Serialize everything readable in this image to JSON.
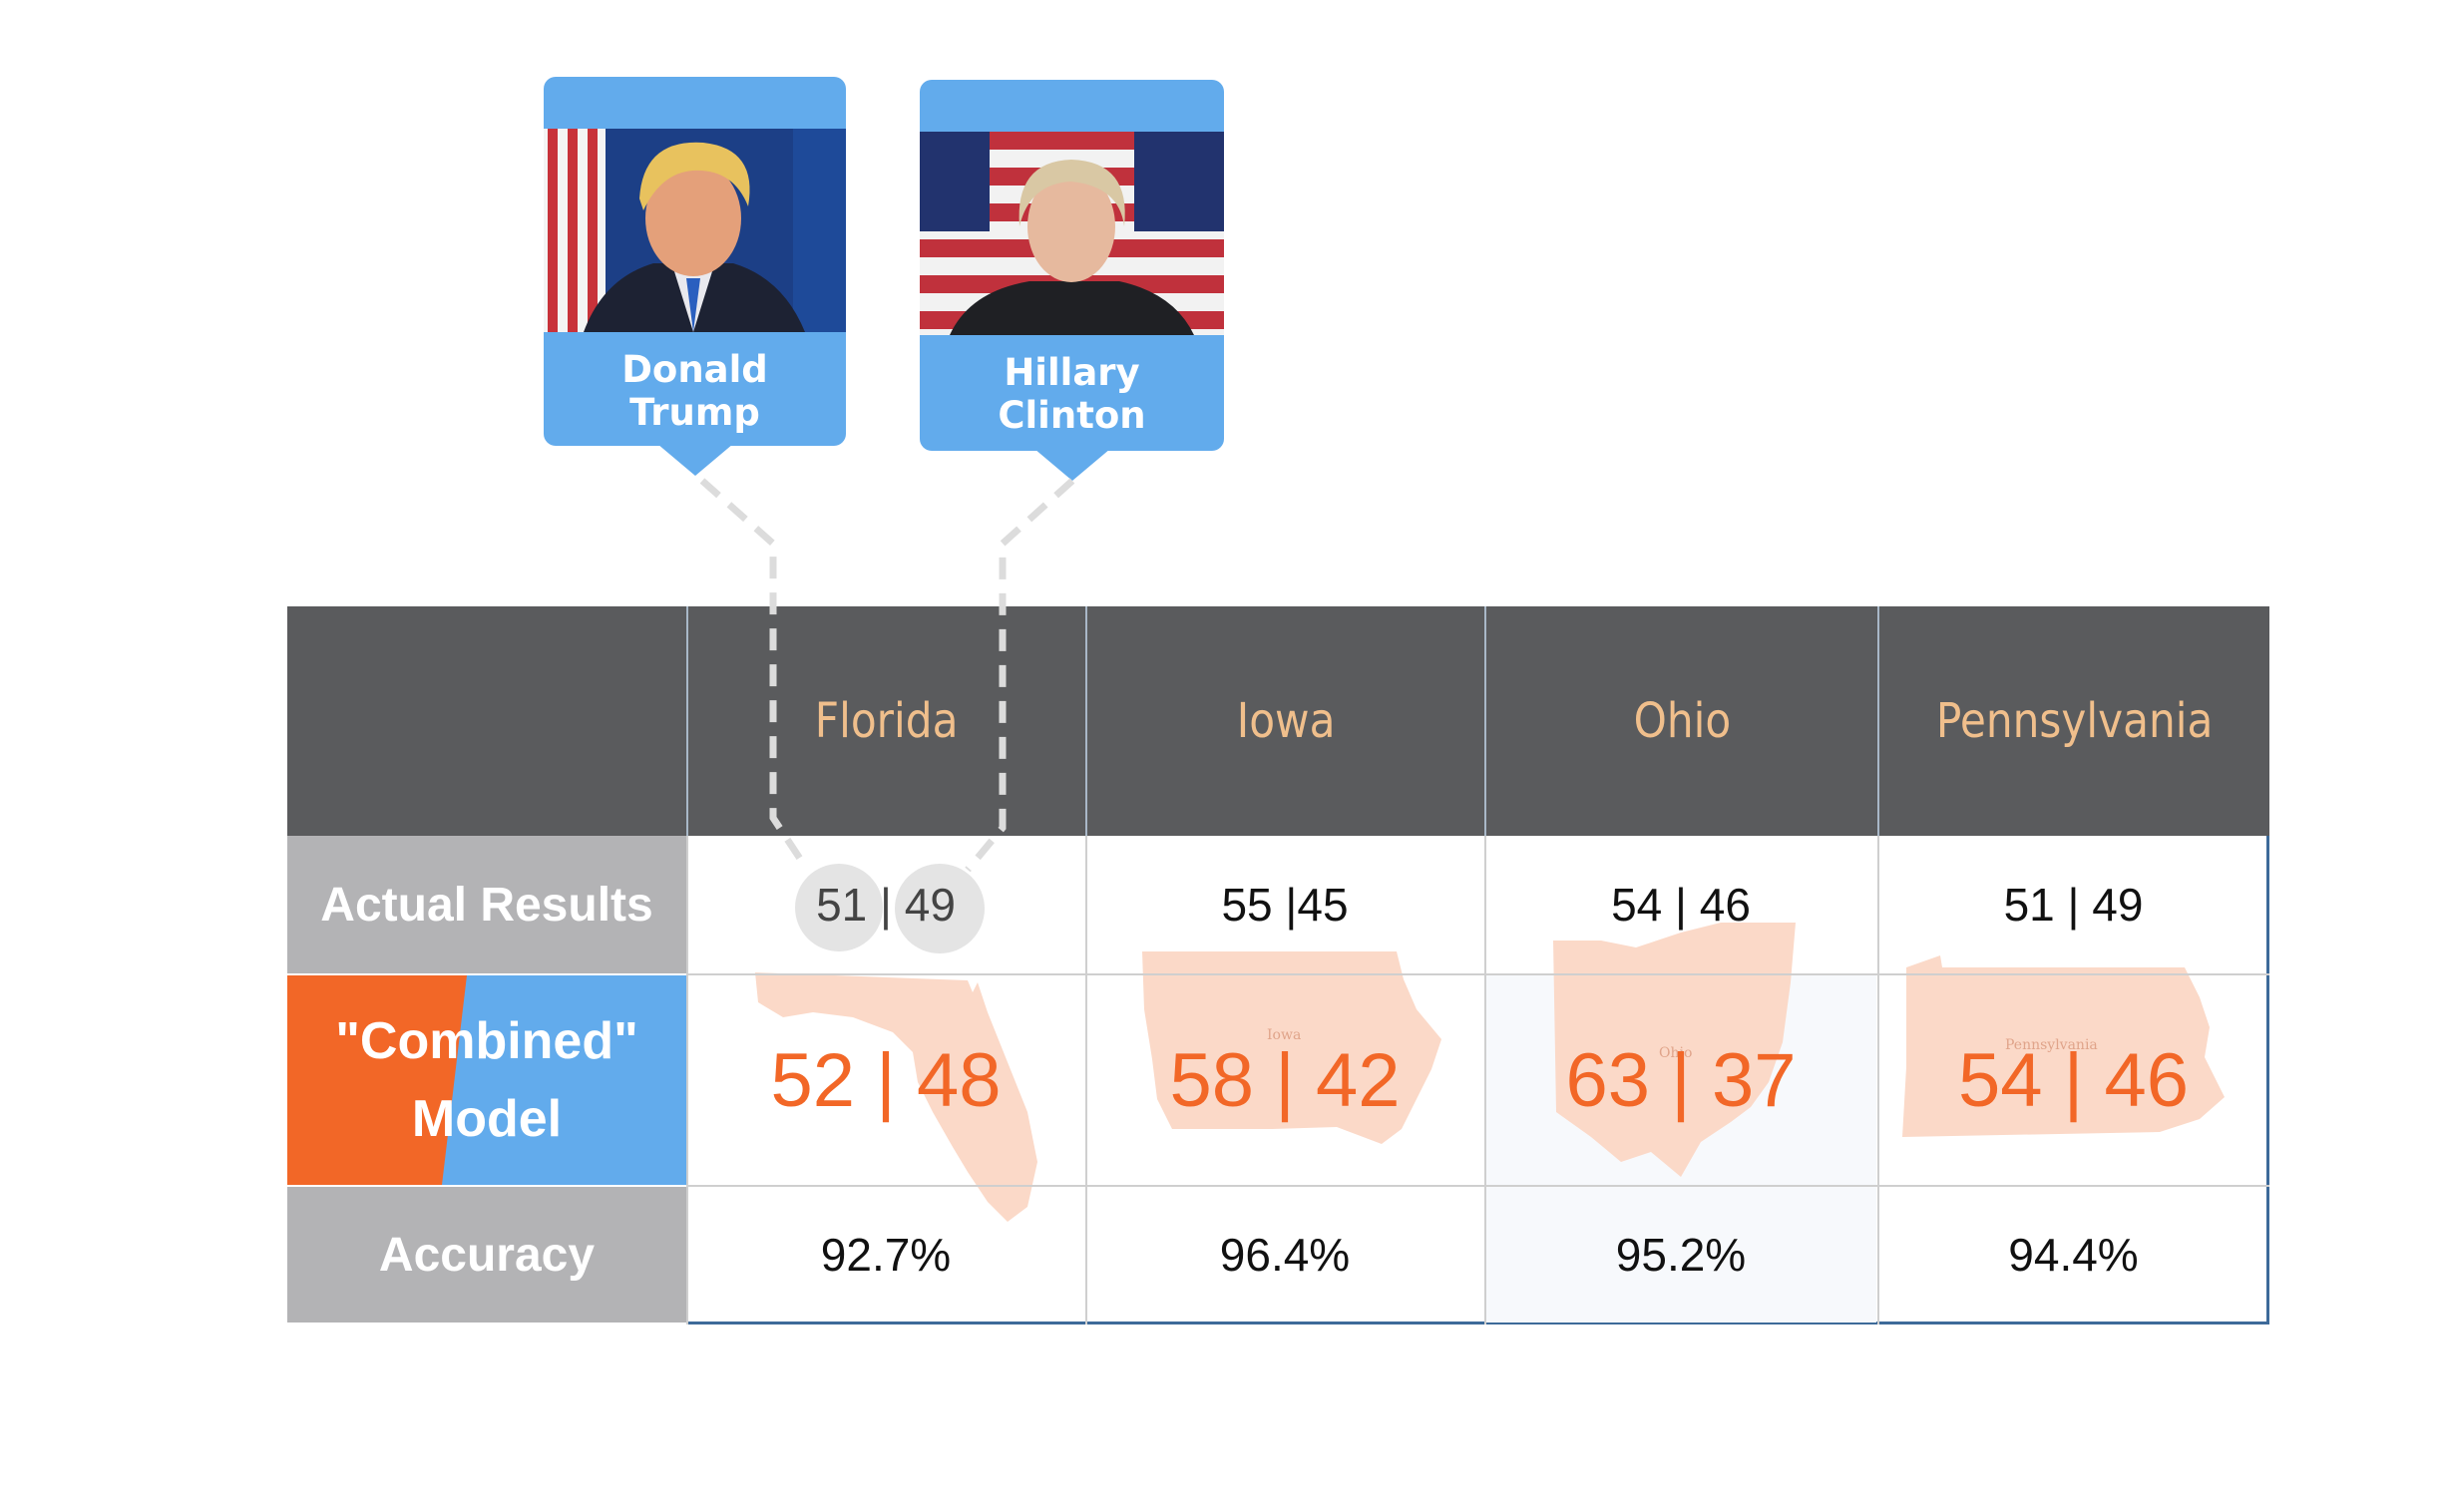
{
  "candidates": [
    {
      "first": "Donald",
      "last": "Trump"
    },
    {
      "first": "Hillary",
      "last": "Clinton"
    }
  ],
  "table": {
    "states": [
      "Florida",
      "Iowa",
      "Ohio",
      "Pennsylvania"
    ],
    "row_labels": {
      "actual": "Actual Results",
      "model_line1": "\"Combined\"",
      "model_line2": "Model",
      "accuracy": "Accuracy"
    },
    "actual": [
      "51 | 49",
      "55 |45",
      "54 | 46",
      "51 | 49"
    ],
    "model": [
      "52 | 48",
      "58 | 42",
      "63 | 37",
      "54 | 46"
    ],
    "accuracy": [
      "92.7%",
      "96.4%",
      "95.2%",
      "94.4%"
    ],
    "map_labels": [
      "Iowa",
      "Ohio",
      "Pennsylvania"
    ]
  },
  "colors": {
    "header_bg": "#5a5b5d",
    "header_text": "#f0bf8c",
    "label_bg": "#b3b3b5",
    "model_orange": "#f26727",
    "model_blue": "#62abec",
    "card_blue": "#62abec",
    "map_fill": "#fbd9c8",
    "grid_line": "#cfcfcf",
    "border_blue": "#3d6a99"
  }
}
